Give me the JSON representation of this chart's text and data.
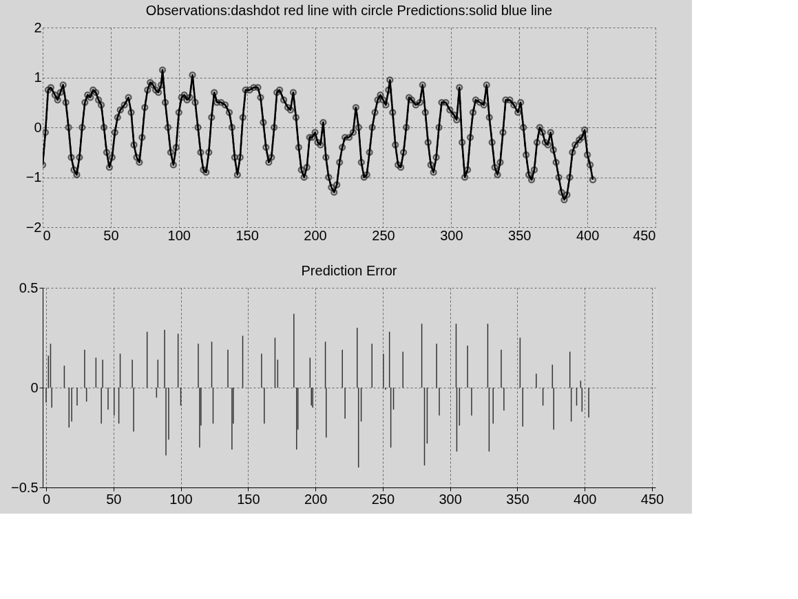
{
  "chart_data": [
    {
      "type": "line",
      "title": "Observations:dashdot red line with circle   Predictions:solid blue line",
      "xlim": [
        0,
        450
      ],
      "xticks": [
        0,
        50,
        100,
        150,
        200,
        250,
        300,
        350,
        400,
        450
      ],
      "ylim": [
        -2,
        2
      ],
      "yticks": [
        -2,
        -1,
        0,
        1,
        2
      ],
      "grid": true,
      "x": [
        0,
        2,
        4,
        6,
        9,
        11,
        13,
        15,
        17,
        19,
        21,
        23,
        25,
        27,
        29,
        31,
        33,
        35,
        37,
        39,
        41,
        43,
        45,
        47,
        49,
        51,
        53,
        55,
        57,
        60,
        63,
        65,
        67,
        69,
        71,
        73,
        75,
        77,
        79,
        81,
        83,
        85,
        87,
        88,
        90,
        92,
        94,
        96,
        98,
        100,
        102,
        104,
        106,
        108,
        110,
        112,
        114,
        116,
        118,
        120,
        122,
        124,
        126,
        128,
        131,
        134,
        137,
        139,
        141,
        143,
        145,
        147,
        149,
        152,
        155,
        158,
        160,
        162,
        164,
        166,
        168,
        170,
        172,
        174,
        177,
        180,
        182,
        184,
        186,
        188,
        190,
        192,
        194,
        196,
        198,
        200,
        202,
        204,
        206,
        208,
        210,
        212,
        214,
        216,
        218,
        220,
        222,
        225,
        228,
        230,
        232,
        234,
        236,
        238,
        240,
        242,
        244,
        246,
        248,
        250,
        252,
        254,
        255,
        257,
        259,
        261,
        263,
        265,
        267,
        269,
        271,
        274,
        277,
        279,
        281,
        283,
        285,
        287,
        289,
        291,
        293,
        296,
        299,
        302,
        304,
        306,
        308,
        310,
        312,
        314,
        316,
        318,
        321,
        324,
        326,
        328,
        330,
        332,
        334,
        336,
        338,
        340,
        343,
        346,
        349,
        351,
        353,
        355,
        357,
        359,
        361,
        363,
        365,
        367,
        369,
        371,
        373,
        375,
        377,
        379,
        381,
        383,
        385,
        387,
        389,
        391,
        394,
        396,
        398,
        400,
        402,
        404
      ],
      "series": [
        {
          "color": "#2a2a2a",
          "line_style": "dashed",
          "marker": "circle",
          "values": [
            -0.75,
            -0.1,
            0.75,
            0.8,
            0.65,
            0.55,
            0.7,
            0.85,
            0.5,
            0.0,
            -0.6,
            -0.85,
            -0.95,
            -0.6,
            0.0,
            0.5,
            0.65,
            0.6,
            0.75,
            0.7,
            0.55,
            0.45,
            0.0,
            -0.5,
            -0.8,
            -0.6,
            -0.1,
            0.2,
            0.35,
            0.45,
            0.6,
            0.3,
            -0.35,
            -0.6,
            -0.7,
            -0.2,
            0.4,
            0.75,
            0.9,
            0.85,
            0.75,
            0.7,
            0.85,
            1.15,
            0.5,
            0.0,
            -0.5,
            -0.75,
            -0.4,
            0.3,
            0.6,
            0.65,
            0.55,
            0.6,
            1.05,
            0.5,
            0.0,
            -0.5,
            -0.85,
            -0.9,
            -0.5,
            0.2,
            0.7,
            0.5,
            0.5,
            0.45,
            0.3,
            0.0,
            -0.6,
            -0.95,
            -0.6,
            0.2,
            0.75,
            0.75,
            0.8,
            0.8,
            0.6,
            0.1,
            -0.4,
            -0.7,
            -0.6,
            0.0,
            0.7,
            0.75,
            0.55,
            0.4,
            0.35,
            0.7,
            0.2,
            -0.4,
            -0.85,
            -1.0,
            -0.8,
            -0.2,
            -0.2,
            -0.1,
            -0.3,
            -0.35,
            0.1,
            -0.6,
            -1.0,
            -1.2,
            -1.3,
            -1.15,
            -0.7,
            -0.4,
            -0.2,
            -0.2,
            -0.1,
            0.4,
            0.0,
            -0.7,
            -1.0,
            -0.95,
            -0.5,
            0.0,
            0.3,
            0.55,
            0.65,
            0.55,
            0.45,
            0.75,
            0.95,
            0.3,
            -0.35,
            -0.75,
            -0.8,
            -0.5,
            0.0,
            0.6,
            0.55,
            0.45,
            0.5,
            0.85,
            0.3,
            -0.3,
            -0.75,
            -0.9,
            -0.6,
            0.0,
            0.5,
            0.5,
            0.35,
            0.25,
            0.15,
            0.8,
            -0.3,
            -1.0,
            -0.85,
            -0.2,
            0.3,
            0.55,
            0.5,
            0.45,
            0.85,
            0.2,
            -0.3,
            -0.8,
            -0.95,
            -0.7,
            -0.1,
            0.55,
            0.55,
            0.45,
            0.3,
            0.5,
            0.0,
            -0.55,
            -0.95,
            -1.05,
            -0.85,
            -0.3,
            0.0,
            -0.1,
            -0.3,
            -0.35,
            -0.1,
            -0.45,
            -0.7,
            -1.0,
            -1.3,
            -1.45,
            -1.35,
            -1.0,
            -0.5,
            -0.35,
            -0.25,
            -0.2,
            -0.05,
            -0.55,
            -0.75,
            -1.05
          ]
        },
        {
          "color": "#000000",
          "line_style": "solid",
          "marker": "none",
          "values": [
            -0.75,
            -0.1,
            0.75,
            0.8,
            0.65,
            0.55,
            0.7,
            0.85,
            0.5,
            0.0,
            -0.6,
            -0.85,
            -0.95,
            -0.6,
            0.0,
            0.5,
            0.65,
            0.6,
            0.75,
            0.7,
            0.55,
            0.45,
            0.0,
            -0.5,
            -0.8,
            -0.6,
            -0.1,
            0.2,
            0.35,
            0.45,
            0.6,
            0.3,
            -0.35,
            -0.6,
            -0.7,
            -0.2,
            0.4,
            0.75,
            0.9,
            0.85,
            0.75,
            0.7,
            0.85,
            1.15,
            0.5,
            0.0,
            -0.5,
            -0.75,
            -0.4,
            0.3,
            0.6,
            0.65,
            0.55,
            0.6,
            1.05,
            0.5,
            0.0,
            -0.5,
            -0.85,
            -0.9,
            -0.5,
            0.2,
            0.7,
            0.5,
            0.5,
            0.45,
            0.3,
            0.0,
            -0.6,
            -0.95,
            -0.6,
            0.2,
            0.75,
            0.75,
            0.8,
            0.8,
            0.6,
            0.1,
            -0.4,
            -0.7,
            -0.6,
            0.0,
            0.7,
            0.75,
            0.55,
            0.4,
            0.35,
            0.7,
            0.2,
            -0.4,
            -0.85,
            -1.0,
            -0.8,
            -0.2,
            -0.2,
            -0.1,
            -0.3,
            -0.35,
            0.1,
            -0.6,
            -1.0,
            -1.2,
            -1.3,
            -1.15,
            -0.7,
            -0.4,
            -0.2,
            -0.2,
            -0.1,
            0.4,
            0.0,
            -0.7,
            -1.0,
            -0.95,
            -0.5,
            0.0,
            0.3,
            0.55,
            0.65,
            0.55,
            0.45,
            0.75,
            0.95,
            0.3,
            -0.35,
            -0.75,
            -0.8,
            -0.5,
            0.0,
            0.6,
            0.55,
            0.45,
            0.5,
            0.85,
            0.3,
            -0.3,
            -0.75,
            -0.9,
            -0.6,
            0.0,
            0.5,
            0.5,
            0.35,
            0.25,
            0.15,
            0.8,
            -0.3,
            -1.0,
            -0.85,
            -0.2,
            0.3,
            0.55,
            0.5,
            0.45,
            0.85,
            0.2,
            -0.3,
            -0.8,
            -0.95,
            -0.7,
            -0.1,
            0.55,
            0.55,
            0.45,
            0.3,
            0.5,
            0.0,
            -0.55,
            -0.95,
            -1.05,
            -0.85,
            -0.3,
            0.0,
            -0.1,
            -0.3,
            -0.35,
            -0.1,
            -0.45,
            -0.7,
            -1.0,
            -1.3,
            -1.45,
            -1.35,
            -1.0,
            -0.5,
            -0.35,
            -0.25,
            -0.2,
            -0.05,
            -0.55,
            -0.75,
            -1.05
          ]
        }
      ]
    },
    {
      "type": "bar",
      "title": "Prediction Error",
      "xlim": [
        0,
        450
      ],
      "xticks": [
        0,
        50,
        100,
        150,
        200,
        250,
        300,
        350,
        400,
        450
      ],
      "ylim": [
        -0.5,
        0.5
      ],
      "yticks": [
        -0.5,
        0,
        0.5
      ],
      "grid": true,
      "x": [
        0,
        1.7,
        3.3,
        4.2,
        13.5,
        17,
        19,
        23,
        28.6,
        30,
        37,
        41,
        42,
        46,
        50.5,
        54,
        55,
        64,
        65,
        75,
        82,
        83,
        88,
        89,
        91,
        98,
        100,
        113,
        114,
        115,
        123,
        124,
        135,
        138,
        139,
        146,
        160,
        162,
        170,
        172,
        184,
        186,
        187,
        196,
        197,
        198,
        207.4,
        208,
        220,
        222,
        231,
        232,
        234,
        242,
        250.5,
        252,
        255,
        256,
        258,
        265,
        279,
        281,
        283,
        290,
        292,
        304.5,
        305,
        307,
        313,
        316,
        328,
        329,
        332,
        338,
        340,
        352,
        354,
        364,
        369,
        376,
        377,
        389,
        390,
        394,
        397,
        398,
        403
      ],
      "series": [
        {
          "color": "#333333",
          "values": [
            -0.075,
            0.16,
            0.22,
            -0.1,
            0.11,
            -0.2,
            -0.17,
            -0.09,
            0.19,
            -0.07,
            0.15,
            -0.18,
            0.14,
            -0.11,
            -0.14,
            -0.18,
            0.17,
            0.14,
            -0.22,
            0.28,
            -0.05,
            0.14,
            0.29,
            -0.34,
            -0.26,
            0.27,
            -0.09,
            0.22,
            -0.3,
            -0.19,
            0.23,
            -0.18,
            0.19,
            -0.31,
            -0.18,
            0.26,
            0.17,
            -0.18,
            0.25,
            0.14,
            0.37,
            -0.31,
            -0.21,
            0.15,
            -0.09,
            -0.1,
            0.23,
            -0.25,
            0.19,
            -0.155,
            0.3,
            -0.4,
            -0.17,
            0.22,
            0.17,
            -0.01,
            0.28,
            -0.3,
            -0.11,
            0.18,
            0.32,
            -0.39,
            -0.28,
            0.22,
            -0.14,
            0.32,
            -0.32,
            -0.19,
            0.21,
            -0.14,
            0.32,
            -0.32,
            -0.18,
            0.19,
            -0.115,
            0.25,
            -0.195,
            0.07,
            -0.09,
            0.115,
            -0.21,
            0.18,
            -0.17,
            -0.09,
            0.035,
            -0.12,
            -0.15
          ]
        }
      ]
    }
  ]
}
